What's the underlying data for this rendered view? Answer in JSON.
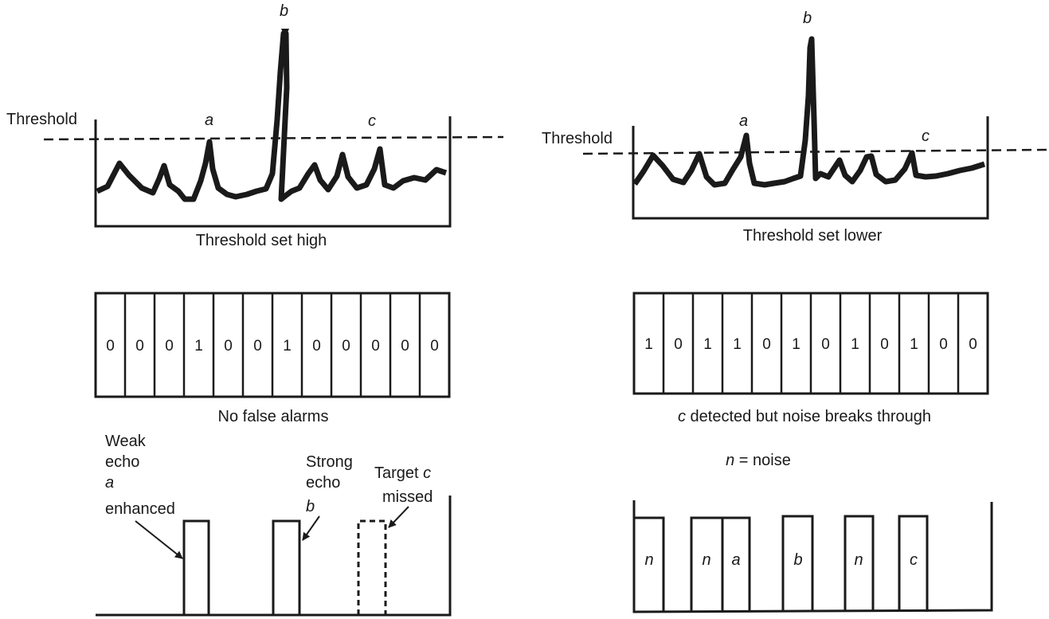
{
  "left_panel": {
    "threshold_label": "Threshold",
    "peak_labels": [
      "a",
      "b",
      "c"
    ],
    "caption": "Threshold set high",
    "bits": [
      "0",
      "0",
      "0",
      "1",
      "0",
      "0",
      "1",
      "0",
      "0",
      "0",
      "0",
      "0"
    ],
    "bits_caption": "No false alarms",
    "annotations": {
      "weak_line1": "Weak",
      "weak_line2": "echo",
      "weak_line3": "a",
      "weak_line4": "enhanced",
      "strong_line1": "Strong",
      "strong_line2": "echo",
      "strong_line3": "b",
      "missed_line1": "Target ",
      "missed_letter": "c",
      "missed_line2": "missed"
    }
  },
  "right_panel": {
    "threshold_label": "Threshold",
    "peak_labels": [
      "a",
      "b",
      "c"
    ],
    "caption": "Threshold set lower",
    "bits": [
      "1",
      "0",
      "1",
      "1",
      "0",
      "1",
      "0",
      "1",
      "0",
      "1",
      "0",
      "0"
    ],
    "bits_caption_letter": "c",
    "bits_caption_rest": " detected but noise breaks through",
    "noise_legend_letter": "n",
    "noise_legend_rest": " = noise",
    "pulse_labels": [
      "n",
      "n",
      "a",
      "b",
      "n",
      "c"
    ]
  }
}
